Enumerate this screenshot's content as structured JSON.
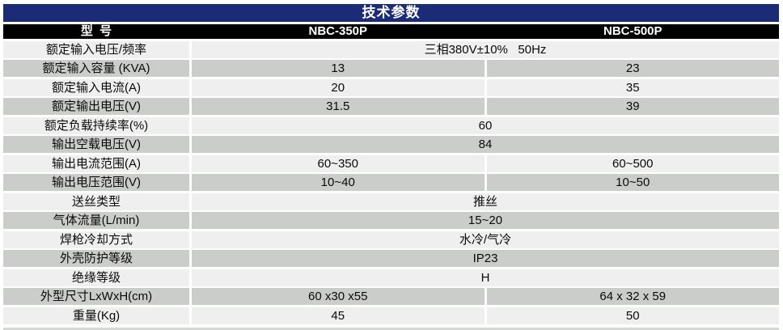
{
  "title": "技术参数",
  "colors": {
    "header_bg": "#1c2b78",
    "model_bg": "#000000",
    "row_light": "#efefef",
    "row_gray": "#cbcdca",
    "header_text": "#ffffff"
  },
  "table": {
    "model_label": "型  号",
    "models": [
      "NBC-350P",
      "NBC-500P"
    ],
    "rows": [
      {
        "label": "额定输入电压/频率",
        "span": "三相380V±10%   50Hz"
      },
      {
        "label": "额定输入容量 (KVA)",
        "v1": "13",
        "v2": "23"
      },
      {
        "label": "额定输入电流(A)",
        "v1": "20",
        "v2": "35"
      },
      {
        "label": "额定输出电压(V)",
        "v1": "31.5",
        "v2": "39"
      },
      {
        "label": "额定负载持续率(%)",
        "span": "60"
      },
      {
        "label": "输出空载电压(V)",
        "span": "84"
      },
      {
        "label": "输出电流范围(A)",
        "v1": "60~350",
        "v2": "60~500"
      },
      {
        "label": "输出电压范围(V)",
        "v1": "10~40",
        "v2": "10~50"
      },
      {
        "label": "送丝类型",
        "span": "推丝"
      },
      {
        "label": "气体流量(L/min)",
        "span": "15~20"
      },
      {
        "label": "焊枪冷却方式",
        "span": "水冷/气冷"
      },
      {
        "label": "外壳防护等级",
        "span": "IP23"
      },
      {
        "label": "绝缘等级",
        "span": "H"
      },
      {
        "label": "外型尺寸LxWxH(cm)",
        "v1": "60 x30 x55",
        "v2": "64 x 32 x 59"
      },
      {
        "label": "重量(Kg)",
        "v1": "45",
        "v2": "50"
      }
    ]
  }
}
